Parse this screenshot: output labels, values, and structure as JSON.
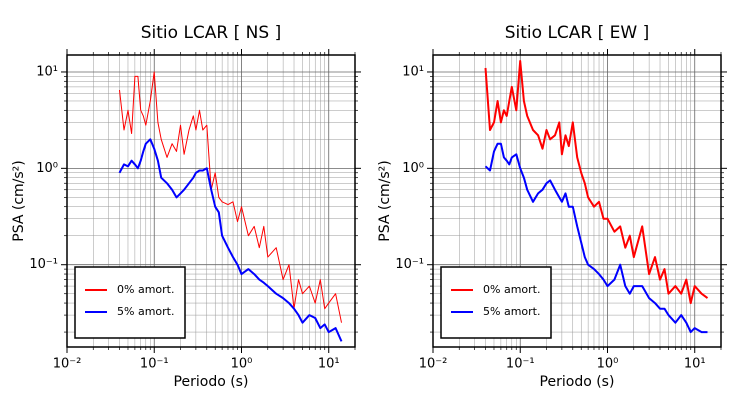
{
  "chart_data": [
    {
      "type": "line",
      "title": "Sitio LCAR [ NS ]",
      "xlabel": "Periodo (s)",
      "ylabel": "PSA (cm/s²)",
      "xscale": "log",
      "yscale": "log",
      "grid": true,
      "legend": "lower left",
      "xlim": [
        0.01,
        20
      ],
      "ylim": [
        0.014,
        15
      ],
      "xticks": [
        {
          "value": 0.01,
          "label": "10⁻²"
        },
        {
          "value": 0.1,
          "label": "10⁻¹"
        },
        {
          "value": 1,
          "label": "10⁰"
        },
        {
          "value": 10,
          "label": "10¹"
        }
      ],
      "yticks": [
        {
          "value": 0.1,
          "label": "10⁻¹"
        },
        {
          "value": 1,
          "label": "10⁰"
        },
        {
          "value": 10,
          "label": "10¹"
        }
      ],
      "x": [
        0.04,
        0.045,
        0.05,
        0.055,
        0.06,
        0.065,
        0.07,
        0.075,
        0.08,
        0.09,
        0.1,
        0.11,
        0.12,
        0.14,
        0.16,
        0.18,
        0.2,
        0.22,
        0.25,
        0.28,
        0.3,
        0.33,
        0.36,
        0.4,
        0.45,
        0.5,
        0.55,
        0.6,
        0.7,
        0.8,
        0.9,
        1.0,
        1.2,
        1.4,
        1.6,
        1.8,
        2.0,
        2.5,
        3.0,
        3.5,
        4.0,
        4.5,
        5,
        6,
        7,
        8,
        9,
        10,
        12,
        14
      ],
      "series": [
        {
          "name": "0% amort.",
          "color": "#ff0000",
          "width": 1,
          "values": [
            6.5,
            2.5,
            4,
            2.3,
            9,
            9,
            4,
            3.5,
            2.8,
            5,
            10,
            3,
            2,
            1.3,
            1.8,
            1.5,
            2.8,
            1.4,
            2.5,
            3.5,
            2.5,
            4,
            2.5,
            2.8,
            0.6,
            0.9,
            0.5,
            0.45,
            0.42,
            0.45,
            0.28,
            0.4,
            0.2,
            0.25,
            0.15,
            0.25,
            0.12,
            0.15,
            0.07,
            0.1,
            0.035,
            0.07,
            0.05,
            0.06,
            0.04,
            0.07,
            0.035,
            0.04,
            0.05,
            0.025
          ]
        },
        {
          "name": "5% amort.",
          "color": "#0000ff",
          "width": 2,
          "values": [
            0.9,
            1.1,
            1.05,
            1.2,
            1.1,
            1.0,
            1.2,
            1.5,
            1.8,
            2.0,
            1.6,
            1.2,
            0.8,
            0.7,
            0.6,
            0.5,
            0.55,
            0.6,
            0.7,
            0.8,
            0.9,
            0.95,
            0.95,
            1.0,
            0.6,
            0.4,
            0.35,
            0.2,
            0.15,
            0.12,
            0.1,
            0.08,
            0.09,
            0.08,
            0.07,
            0.065,
            0.06,
            0.05,
            0.045,
            0.04,
            0.035,
            0.03,
            0.025,
            0.03,
            0.028,
            0.022,
            0.024,
            0.02,
            0.022,
            0.016
          ]
        }
      ]
    },
    {
      "type": "line",
      "title": "Sitio LCAR [ EW ]",
      "xlabel": "Periodo (s)",
      "ylabel": "PSA (cm/s²)",
      "xscale": "log",
      "yscale": "log",
      "grid": true,
      "legend": "lower left",
      "xlim": [
        0.01,
        20
      ],
      "ylim": [
        0.014,
        15
      ],
      "xticks": [
        {
          "value": 0.01,
          "label": "10⁻²"
        },
        {
          "value": 0.1,
          "label": "10⁻¹"
        },
        {
          "value": 1,
          "label": "10⁰"
        },
        {
          "value": 10,
          "label": "10¹"
        }
      ],
      "yticks": [
        {
          "value": 0.1,
          "label": "10⁻¹"
        },
        {
          "value": 1,
          "label": "10⁰"
        },
        {
          "value": 10,
          "label": "10¹"
        }
      ],
      "x": [
        0.04,
        0.045,
        0.05,
        0.055,
        0.06,
        0.065,
        0.07,
        0.075,
        0.08,
        0.09,
        0.1,
        0.11,
        0.12,
        0.14,
        0.16,
        0.18,
        0.2,
        0.22,
        0.25,
        0.28,
        0.3,
        0.33,
        0.36,
        0.4,
        0.45,
        0.5,
        0.55,
        0.6,
        0.7,
        0.8,
        0.9,
        1.0,
        1.2,
        1.4,
        1.6,
        1.8,
        2.0,
        2.5,
        3.0,
        3.5,
        4.0,
        4.5,
        5,
        6,
        7,
        8,
        9,
        10,
        12,
        14
      ],
      "series": [
        {
          "name": "0% amort.",
          "color": "#ff0000",
          "width": 2,
          "values": [
            11,
            2.5,
            3,
            5,
            3,
            4,
            3.5,
            5,
            7,
            4,
            13,
            5,
            3.5,
            2.5,
            2.2,
            1.6,
            2.5,
            2,
            2.2,
            3,
            1.4,
            2.2,
            1.7,
            3,
            1.3,
            0.9,
            0.7,
            0.5,
            0.4,
            0.45,
            0.3,
            0.3,
            0.22,
            0.25,
            0.15,
            0.2,
            0.12,
            0.25,
            0.08,
            0.12,
            0.07,
            0.09,
            0.05,
            0.06,
            0.05,
            0.07,
            0.04,
            0.06,
            0.05,
            0.045
          ]
        },
        {
          "name": "5% amort.",
          "color": "#0000ff",
          "width": 2,
          "values": [
            1.05,
            0.95,
            1.5,
            1.8,
            1.8,
            1.3,
            1.2,
            1.1,
            1.3,
            1.4,
            1.0,
            0.8,
            0.6,
            0.45,
            0.55,
            0.6,
            0.7,
            0.75,
            0.6,
            0.5,
            0.45,
            0.55,
            0.4,
            0.4,
            0.25,
            0.17,
            0.12,
            0.1,
            0.09,
            0.08,
            0.07,
            0.06,
            0.07,
            0.1,
            0.06,
            0.05,
            0.06,
            0.06,
            0.045,
            0.04,
            0.035,
            0.035,
            0.03,
            0.025,
            0.03,
            0.025,
            0.02,
            0.022,
            0.02,
            0.02
          ]
        }
      ]
    }
  ]
}
